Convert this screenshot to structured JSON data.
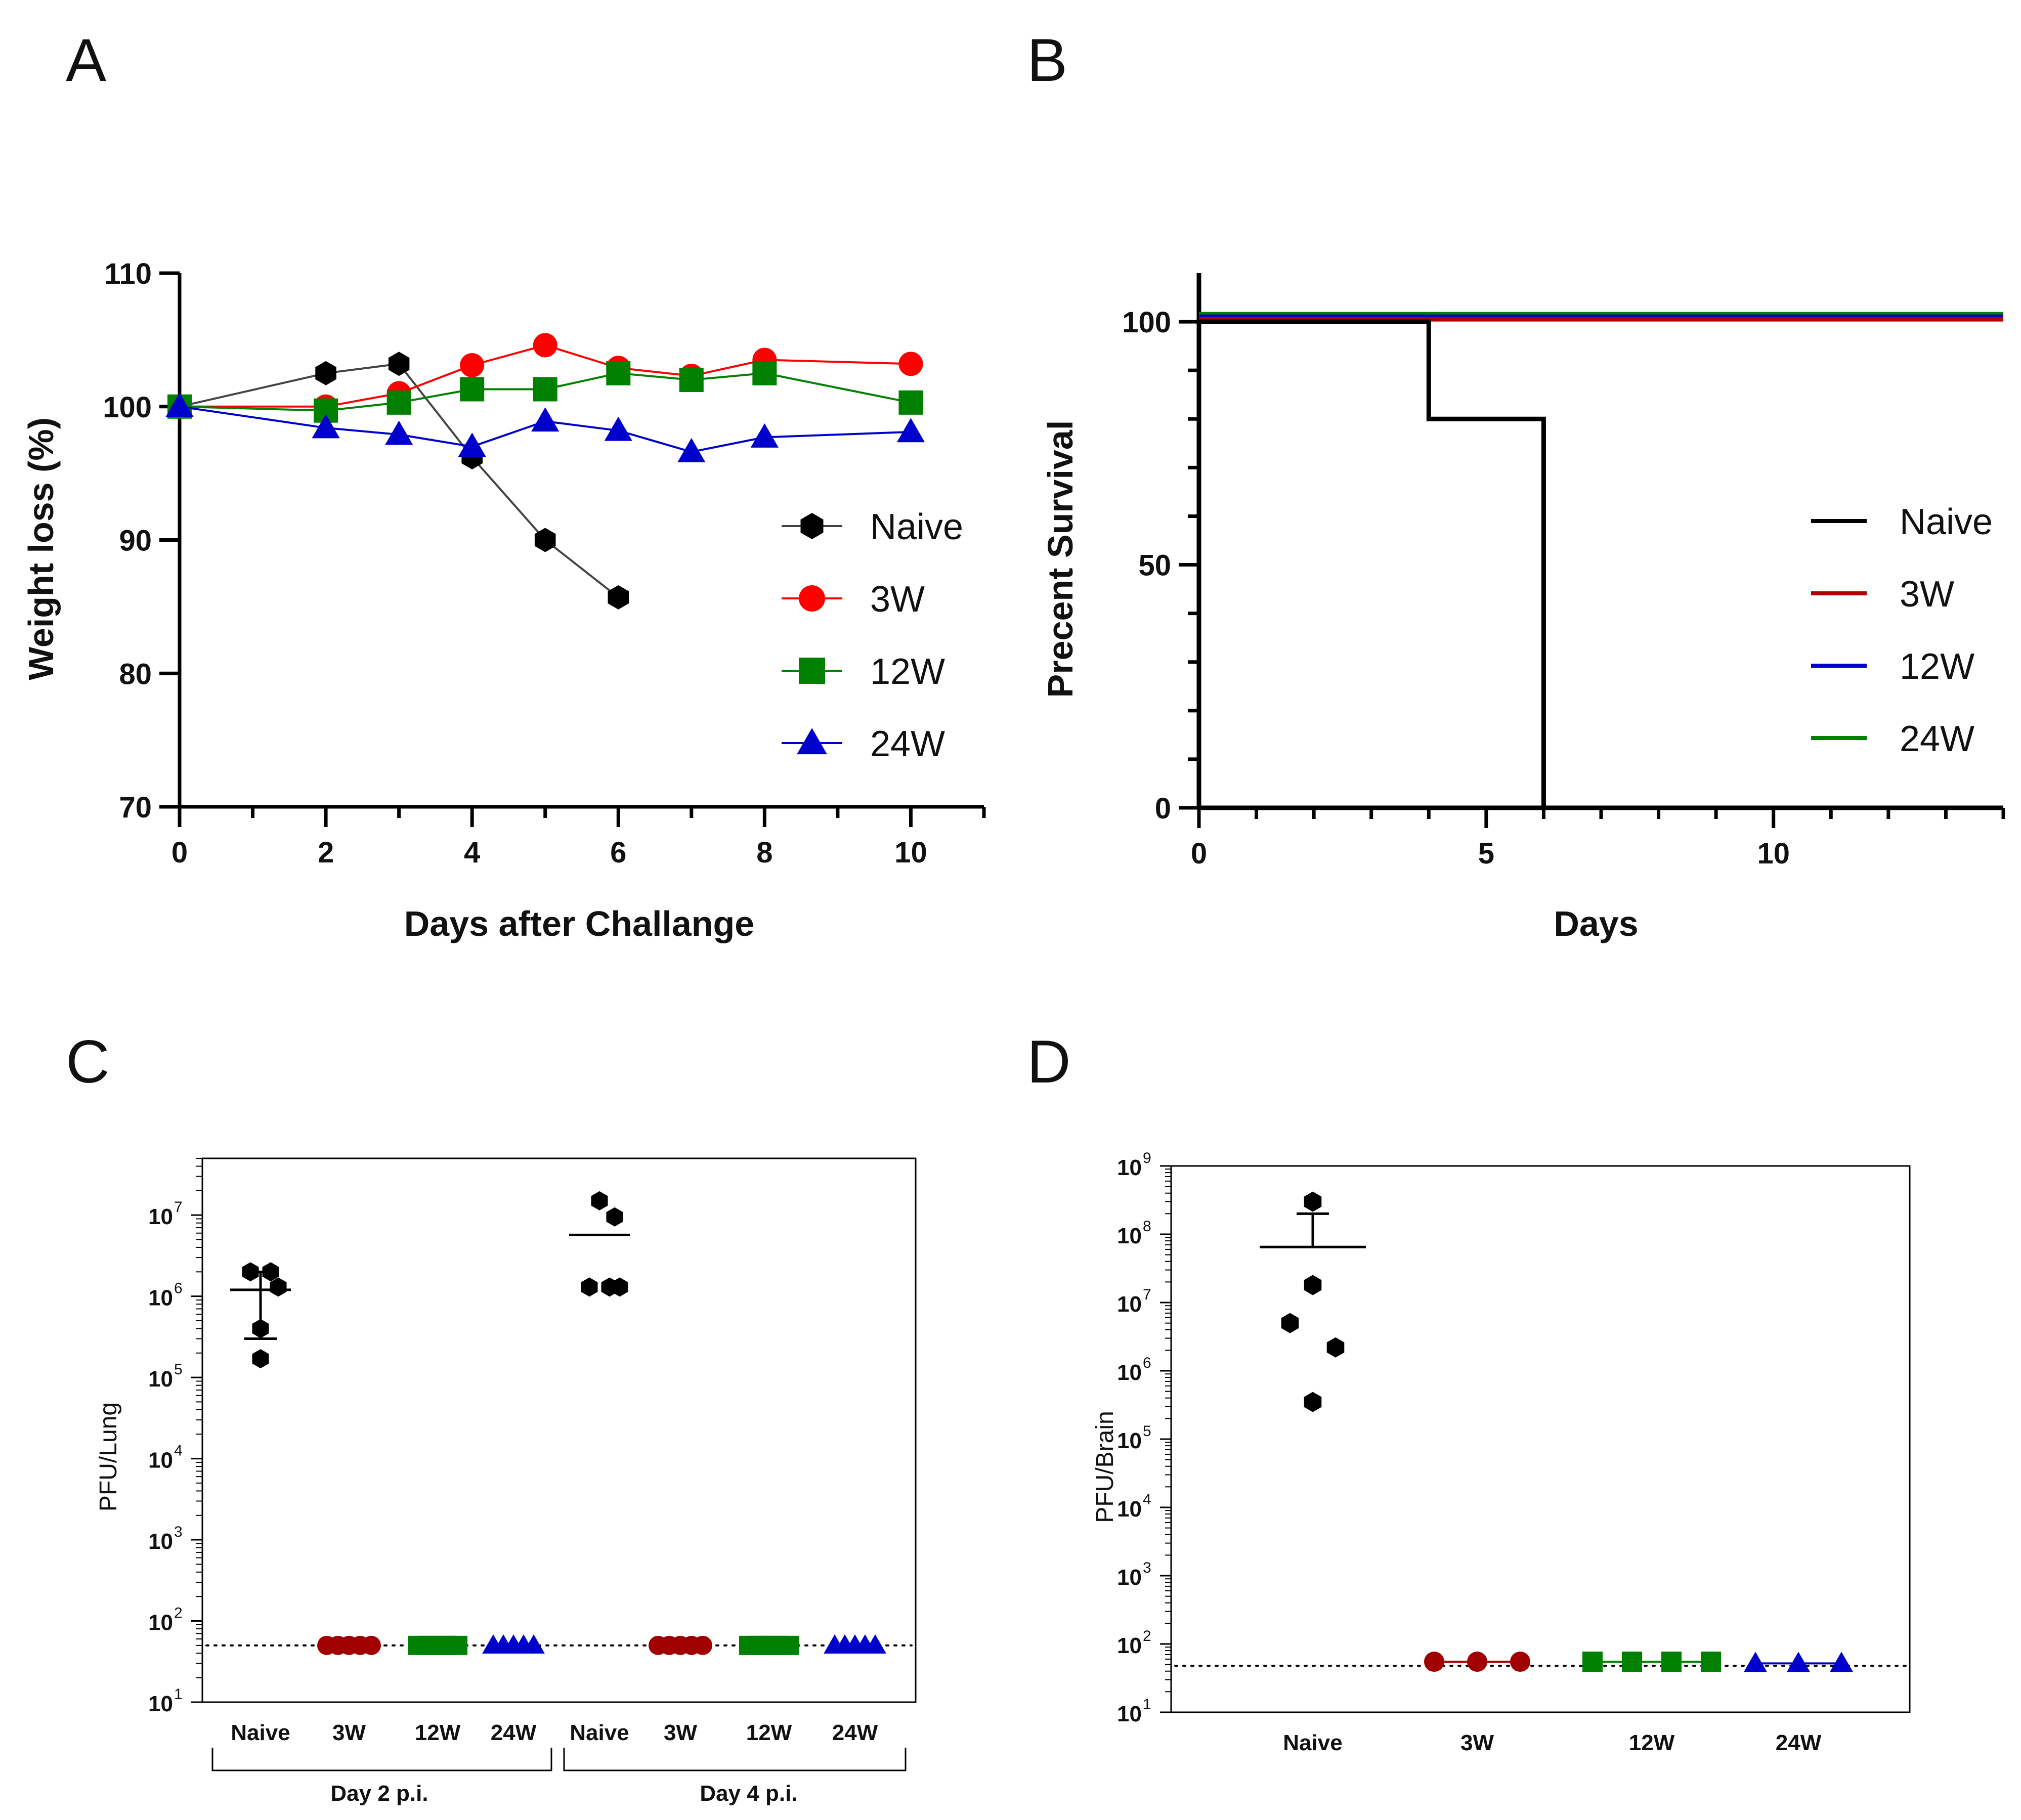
{
  "chart_data": [
    {
      "panel": "A",
      "type": "line",
      "xlabel": "Days after Challange",
      "ylabel": "Weight loss (%)",
      "xlim": [
        0,
        11
      ],
      "ylim": [
        70,
        110
      ],
      "xticks": [
        0,
        2,
        4,
        6,
        8,
        10
      ],
      "yticks": [
        70,
        80,
        90,
        100,
        110
      ],
      "legend_position": "right",
      "series": [
        {
          "name": "Naive",
          "color": "#000000",
          "marker": "hexagon",
          "x": [
            0,
            2,
            3,
            4,
            5,
            6
          ],
          "values": [
            100,
            102.5,
            103.2,
            96.2,
            90,
            85.7
          ]
        },
        {
          "name": "3W",
          "color": "#ff0000",
          "marker": "circle",
          "x": [
            0,
            2,
            3,
            4,
            5,
            6,
            7,
            8,
            10
          ],
          "values": [
            100,
            100,
            101,
            103.1,
            104.6,
            102.9,
            102.3,
            103.5,
            103.2
          ]
        },
        {
          "name": "12W",
          "color": "#008000",
          "marker": "square",
          "x": [
            0,
            2,
            3,
            4,
            5,
            6,
            7,
            8,
            10
          ],
          "values": [
            100,
            99.7,
            100.3,
            101.3,
            101.3,
            102.5,
            102,
            102.5,
            100.3
          ]
        },
        {
          "name": "24W",
          "color": "#0000cc",
          "marker": "triangle",
          "x": [
            0,
            2,
            3,
            4,
            5,
            6,
            7,
            8,
            10
          ],
          "values": [
            100,
            98.4,
            97.9,
            97,
            98.9,
            98.2,
            96.6,
            97.7,
            98.1
          ]
        }
      ]
    },
    {
      "panel": "B",
      "type": "line",
      "xlabel": "Days",
      "ylabel": "Precent Survival",
      "xlim": [
        0,
        14
      ],
      "ylim": [
        0,
        110
      ],
      "xticks": [
        0,
        5,
        10
      ],
      "yticks": [
        0,
        50,
        100
      ],
      "legend_position": "right",
      "series": [
        {
          "name": "Naive",
          "color": "#000000",
          "x": [
            0,
            4,
            4,
            6,
            6
          ],
          "values": [
            100,
            100,
            80,
            80,
            0
          ]
        },
        {
          "name": "3W",
          "color": "#b00000",
          "x": [
            0,
            14
          ],
          "values": [
            100,
            100
          ]
        },
        {
          "name": "12W",
          "color": "#0000cc",
          "x": [
            0,
            14
          ],
          "values": [
            100,
            100
          ]
        },
        {
          "name": "24W",
          "color": "#008000",
          "x": [
            0,
            14
          ],
          "values": [
            100,
            100
          ]
        }
      ]
    },
    {
      "panel": "C",
      "type": "scatter",
      "ylabel": "PFU/Lung",
      "yscale": "log",
      "ylim": [
        10,
        50000000
      ],
      "yticks_exponent": [
        1,
        2,
        3,
        4,
        5,
        6,
        7
      ],
      "detection_limit": 50,
      "groups": [
        {
          "label": "Naive",
          "color": "#000000",
          "marker": "hexagon",
          "values": [
            2000000,
            2000000,
            1300000,
            400000,
            170000
          ],
          "mean": 1200000,
          "sd_upper": 2000000,
          "sd_lower": 300000
        },
        {
          "label": "3W",
          "color": "#a00000",
          "marker": "circle",
          "values": [
            50,
            50,
            50,
            50,
            50
          ]
        },
        {
          "label": "12W",
          "color": "#008000",
          "marker": "square",
          "values": [
            50,
            50,
            50,
            50,
            50
          ]
        },
        {
          "label": "24W",
          "color": "#0000cc",
          "marker": "triangle",
          "values": [
            50,
            50,
            50,
            50,
            50
          ]
        },
        {
          "label": "Naive",
          "color": "#000000",
          "marker": "hexagon",
          "values": [
            15000000,
            9500000,
            1300000,
            1300000,
            1300000
          ],
          "mean": 5700000
        },
        {
          "label": "3W",
          "color": "#a00000",
          "marker": "circle",
          "values": [
            50,
            50,
            50,
            50,
            50
          ]
        },
        {
          "label": "12W",
          "color": "#008000",
          "marker": "square",
          "values": [
            50,
            50,
            50,
            50,
            50
          ]
        },
        {
          "label": "24W",
          "color": "#0000cc",
          "marker": "triangle",
          "values": [
            50,
            50,
            50,
            50,
            50
          ]
        }
      ],
      "brackets": [
        "Day 2 p.i.",
        "Day 4 p.i."
      ]
    },
    {
      "panel": "D",
      "type": "scatter",
      "ylabel": "PFU/Brain",
      "yscale": "log",
      "ylim": [
        10,
        1000000000
      ],
      "yticks_exponent": [
        1,
        2,
        3,
        4,
        5,
        6,
        7,
        8,
        9
      ],
      "detection_limit": 48,
      "groups": [
        {
          "label": "Naive",
          "color": "#000000",
          "marker": "hexagon",
          "values": [
            300000000,
            18000000,
            5000000,
            2200000,
            350000
          ],
          "mean": 65000000,
          "sd_upper": 200000000
        },
        {
          "label": "3W",
          "color": "#a00000",
          "marker": "circle",
          "values": [
            55,
            55,
            55
          ]
        },
        {
          "label": "12W",
          "color": "#008000",
          "marker": "square",
          "values": [
            55,
            55,
            55,
            55
          ]
        },
        {
          "label": "24W",
          "color": "#0000cc",
          "marker": "triangle",
          "values": [
            52,
            52,
            52
          ]
        }
      ]
    }
  ]
}
